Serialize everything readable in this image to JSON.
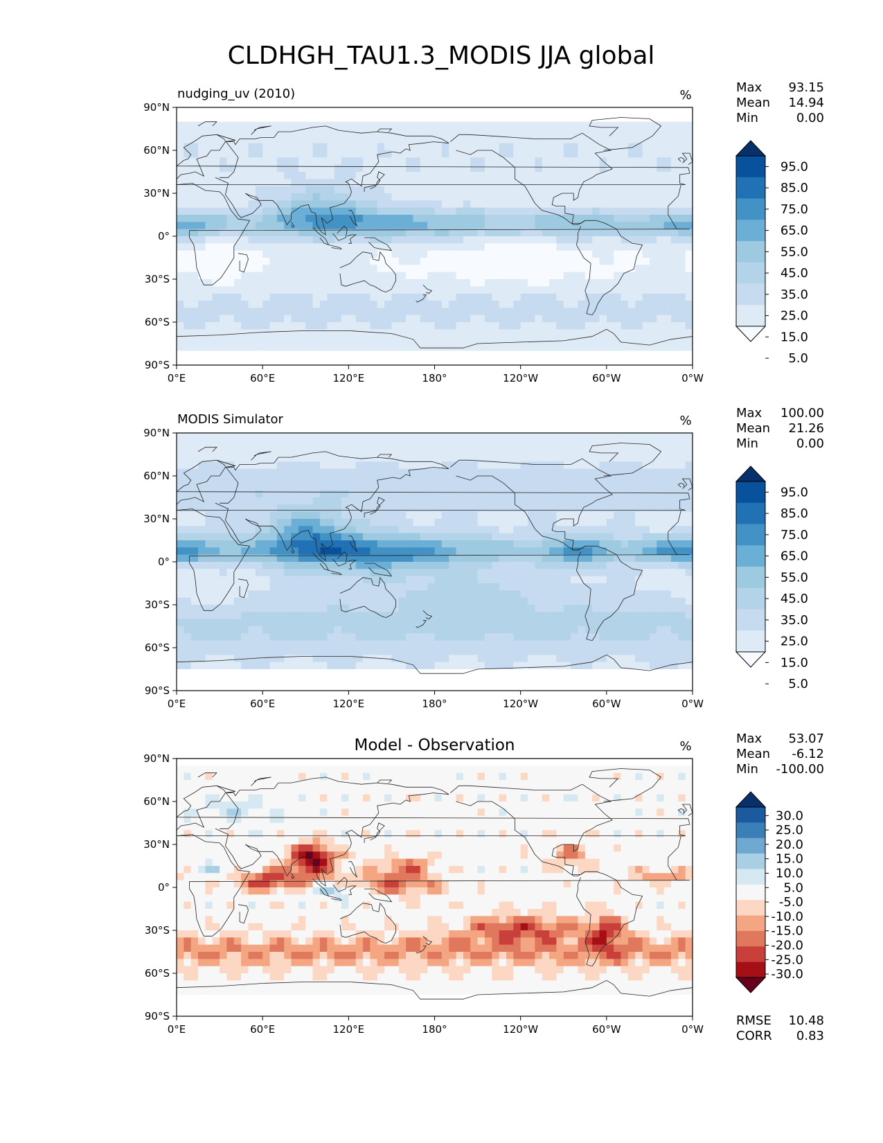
{
  "figure_title": "CLDHGH_TAU1.3_MODIS JJA global",
  "colors": {
    "seq": [
      "#f7fbff",
      "#deebf7",
      "#c6dbef",
      "#b3d3e8",
      "#9ecae1",
      "#6baed6",
      "#4292c6",
      "#2171b5",
      "#08519c",
      "#08306b"
    ],
    "div": [
      "#67001f",
      "#a50f15",
      "#c9403a",
      "#e0785e",
      "#f4a582",
      "#fbd7c4",
      "#f7f7f7",
      "#d6e8f2",
      "#a9cfe5",
      "#6fa8d0",
      "#3a7fb8",
      "#1b5a9e",
      "#08306b"
    ],
    "coast": "#222222"
  },
  "chart_data": [
    {
      "type": "heatmap",
      "title": "",
      "subtitle": "nudging_uv (2010)",
      "units": "%",
      "stats": {
        "max_label": "Max",
        "max": "93.15",
        "mean_label": "Mean",
        "mean": "14.94",
        "min_label": "Min",
        "min": "0.00"
      },
      "xlim": [
        0,
        360
      ],
      "ylim": [
        -90,
        90
      ],
      "xticks": [
        "0°E",
        "60°E",
        "120°E",
        "180°",
        "120°W",
        "60°W",
        "0°W"
      ],
      "yticks": [
        "90°N",
        "60°N",
        "30°N",
        "0°",
        "30°S",
        "60°S",
        "90°S"
      ],
      "colorbar_ticks": [
        "95.0",
        "85.0",
        "75.0",
        "65.0",
        "55.0",
        "45.0",
        "35.0",
        "25.0",
        "15.0",
        "5.0"
      ],
      "levels": [
        5,
        15,
        25,
        35,
        45,
        55,
        65,
        75,
        85,
        95
      ]
    },
    {
      "type": "heatmap",
      "title": "",
      "subtitle": "MODIS Simulator",
      "units": "%",
      "stats": {
        "max_label": "Max",
        "max": "100.00",
        "mean_label": "Mean",
        "mean": "21.26",
        "min_label": "Min",
        "min": "0.00"
      },
      "xlim": [
        0,
        360
      ],
      "ylim": [
        -90,
        90
      ],
      "xticks": [
        "0°E",
        "60°E",
        "120°E",
        "180°",
        "120°W",
        "60°W",
        "0°W"
      ],
      "yticks": [
        "90°N",
        "60°N",
        "30°N",
        "0°",
        "30°S",
        "60°S",
        "90°S"
      ],
      "colorbar_ticks": [
        "95.0",
        "85.0",
        "75.0",
        "65.0",
        "55.0",
        "45.0",
        "35.0",
        "25.0",
        "15.0",
        "5.0"
      ],
      "levels": [
        5,
        15,
        25,
        35,
        45,
        55,
        65,
        75,
        85,
        95
      ]
    },
    {
      "type": "heatmap",
      "title": "Model - Observation",
      "subtitle": "",
      "units": "%",
      "stats": {
        "max_label": "Max",
        "max": "53.07",
        "mean_label": "Mean",
        "mean": "-6.12",
        "min_label": "Min",
        "min": "-100.00"
      },
      "metrics": {
        "rmse_label": "RMSE",
        "rmse": "10.48",
        "corr_label": "CORR",
        "corr": "0.83"
      },
      "xlim": [
        0,
        360
      ],
      "ylim": [
        -90,
        90
      ],
      "xticks": [
        "0°E",
        "60°E",
        "120°E",
        "180°",
        "120°W",
        "60°W",
        "0°W"
      ],
      "yticks": [
        "90°N",
        "60°N",
        "30°N",
        "0°",
        "30°S",
        "60°S",
        "90°S"
      ],
      "colorbar_ticks": [
        "30.0",
        "25.0",
        "20.0",
        "15.0",
        "10.0",
        "5.0",
        "-5.0",
        "-10.0",
        "-15.0",
        "-20.0",
        "-25.0",
        "-30.0"
      ],
      "levels": [
        -30,
        -25,
        -20,
        -15,
        -10,
        -5,
        5,
        10,
        15,
        20,
        25,
        30
      ]
    }
  ]
}
